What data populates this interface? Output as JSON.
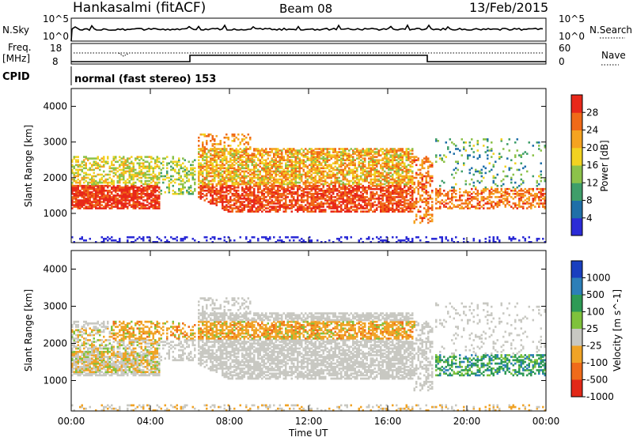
{
  "header": {
    "station": "Hankasalmi (fitACF)",
    "beam": "Beam 08",
    "date": "13/Feb/2015"
  },
  "panels": {
    "nsky": {
      "label": "N.Sky",
      "tick_top": "10^5",
      "tick_bottom": "10^0",
      "right_label": "N.Search",
      "right_top": "10^5",
      "right_bottom": "10^0"
    },
    "freq": {
      "label_line1": "Freq.",
      "label_line2": "[MHz]",
      "tick_top": "18",
      "tick_bottom": "8",
      "right_label": "Nave",
      "right_top": "60",
      "right_bottom": "0"
    },
    "cpid": {
      "label": "CPID",
      "value": "normal (fast stereo) 153"
    }
  },
  "colors": {
    "power": [
      "#2b2bd6",
      "#1f6fa8",
      "#3f9e6a",
      "#8cc24a",
      "#f2d221",
      "#f5a320",
      "#f06a18",
      "#e8281a"
    ],
    "velocity": [
      "#1a3fbf",
      "#2d7fb8",
      "#2e9a55",
      "#7fc23c",
      "#c8c8c2",
      "#f0a326",
      "#f06b1a",
      "#e22818"
    ]
  },
  "chart_data": [
    {
      "type": "heatmap",
      "name": "power",
      "ylabel": "Slant Range [km]",
      "xlim": [
        "00:00",
        "00:00"
      ],
      "ylim": [
        180,
        4500
      ],
      "yticks": [
        "1000",
        "2000",
        "3000",
        "4000"
      ],
      "colorbar": {
        "label": "Power [dB]",
        "ticks": [
          "4",
          "8",
          "12",
          "16",
          "20",
          "24",
          "28"
        ],
        "range": [
          0,
          32
        ]
      }
    },
    {
      "type": "heatmap",
      "name": "velocity",
      "ylabel": "Slant Range [km]",
      "xlim": [
        "00:00",
        "00:00"
      ],
      "ylim": [
        180,
        4500
      ],
      "yticks": [
        "1000",
        "2000",
        "3000",
        "4000"
      ],
      "colorbar": {
        "label": "Velocity [m s^-1]",
        "ticks": [
          "1000",
          "500",
          "100",
          "25",
          "-25",
          "-100",
          "-500",
          "-1000"
        ]
      }
    }
  ],
  "xaxis": {
    "label": "Time UT",
    "ticks": [
      "00:00",
      "04:00",
      "08:00",
      "12:00",
      "16:00",
      "20:00",
      "00:00"
    ]
  }
}
